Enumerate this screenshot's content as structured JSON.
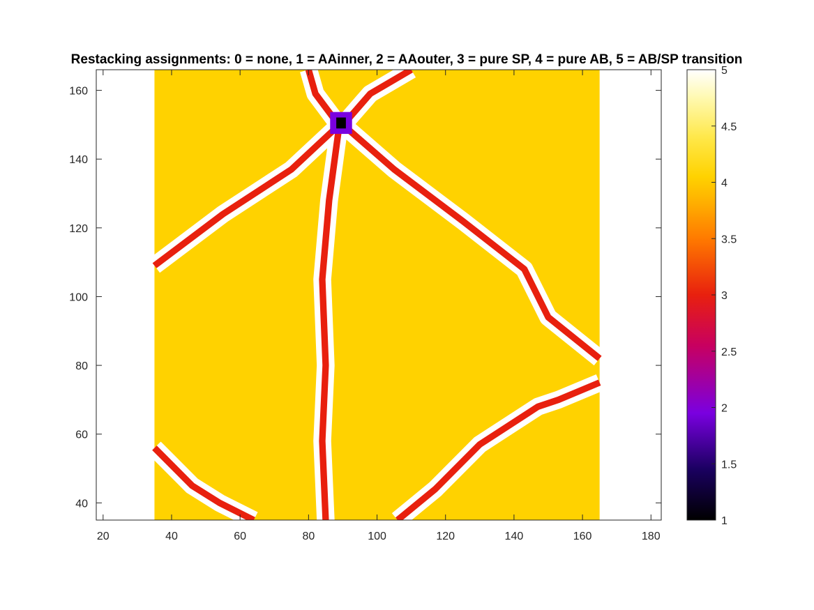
{
  "chart_data": {
    "type": "heatmap",
    "title": "Restacking assignments: 0 = none, 1 = AAinner, 2 = AAouter, 3 = pure SP, 4 = pure AB, 5 = AB/SP transition",
    "xlabel": "",
    "ylabel": "",
    "xlim": [
      18,
      183
    ],
    "ylim": [
      35,
      166
    ],
    "xticks": [
      "20",
      "40",
      "60",
      "80",
      "100",
      "120",
      "140",
      "160",
      "180"
    ],
    "yticks": [
      "40",
      "60",
      "80",
      "100",
      "120",
      "140",
      "160"
    ],
    "grid": false,
    "data_region": {
      "x": [
        35,
        165
      ],
      "y": [
        35,
        166
      ]
    },
    "background_value": 4,
    "outside_value": 5,
    "domain_wall_value": 3,
    "wall_border_value": 5,
    "aa_center": {
      "x": 89.5,
      "y": 150.5,
      "outer_value": 2,
      "inner_value": 1
    },
    "domain_walls": [
      {
        "name": "",
        "points": [
          [
            89,
            150
          ],
          [
            75,
            137
          ],
          [
            55,
            124
          ],
          [
            35,
            109
          ]
        ]
      },
      {
        "name": "",
        "points": [
          [
            90,
            150
          ],
          [
            105,
            137
          ],
          [
            125,
            122
          ],
          [
            143,
            108
          ],
          [
            150,
            94
          ],
          [
            165,
            82
          ]
        ]
      },
      {
        "name": "",
        "points": [
          [
            89,
            150
          ],
          [
            86,
            128
          ],
          [
            84,
            105
          ],
          [
            85,
            80
          ],
          [
            84,
            58
          ],
          [
            85,
            35
          ]
        ]
      },
      {
        "name": "",
        "points": [
          [
            91,
            151
          ],
          [
            98,
            159
          ],
          [
            110,
            166
          ]
        ]
      },
      {
        "name": "",
        "points": [
          [
            88,
            151
          ],
          [
            82,
            159
          ],
          [
            80,
            166
          ]
        ]
      },
      {
        "name": "",
        "points": [
          [
            35,
            56
          ],
          [
            46,
            45
          ],
          [
            54,
            40
          ],
          [
            64,
            35
          ]
        ]
      },
      {
        "name": "",
        "points": [
          [
            106,
            35
          ],
          [
            117,
            44
          ],
          [
            130,
            57
          ],
          [
            147,
            68
          ],
          [
            153,
            70
          ],
          [
            165,
            75
          ]
        ]
      }
    ],
    "colorbar": {
      "min": 1,
      "max": 5,
      "ticks": [
        "1",
        "1.5",
        "2",
        "2.5",
        "3",
        "3.5",
        "4",
        "4.5",
        "5"
      ],
      "colormap": [
        [
          "#000000",
          1
        ],
        [
          "#1a0060",
          1.45
        ],
        [
          "#7a00e0",
          1.95
        ],
        [
          "#c80060",
          2.55
        ],
        [
          "#e8200e",
          3.0
        ],
        [
          "#ff7a00",
          3.5
        ],
        [
          "#ffb400",
          3.85
        ],
        [
          "#ffd200",
          4.05
        ],
        [
          "#ffe84a",
          4.4
        ],
        [
          "#fff9b0",
          4.75
        ],
        [
          "#ffffff",
          5
        ]
      ]
    }
  }
}
